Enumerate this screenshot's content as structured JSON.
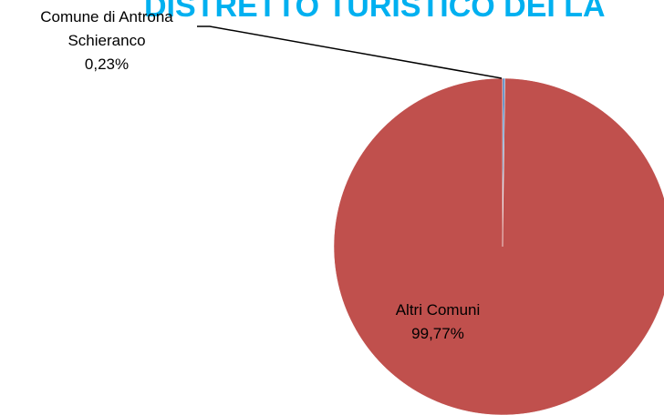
{
  "chart_data": {
    "type": "pie",
    "title": "DISTRETTO TURISTICO DEI LA",
    "categories": [
      "Comune di Antrona Schieranco",
      "Altri Comuni"
    ],
    "values": [
      0.23,
      99.77
    ],
    "value_labels": [
      "0,23%",
      "99,77%"
    ],
    "colors": [
      "#4f81bd",
      "#c0504d"
    ]
  }
}
